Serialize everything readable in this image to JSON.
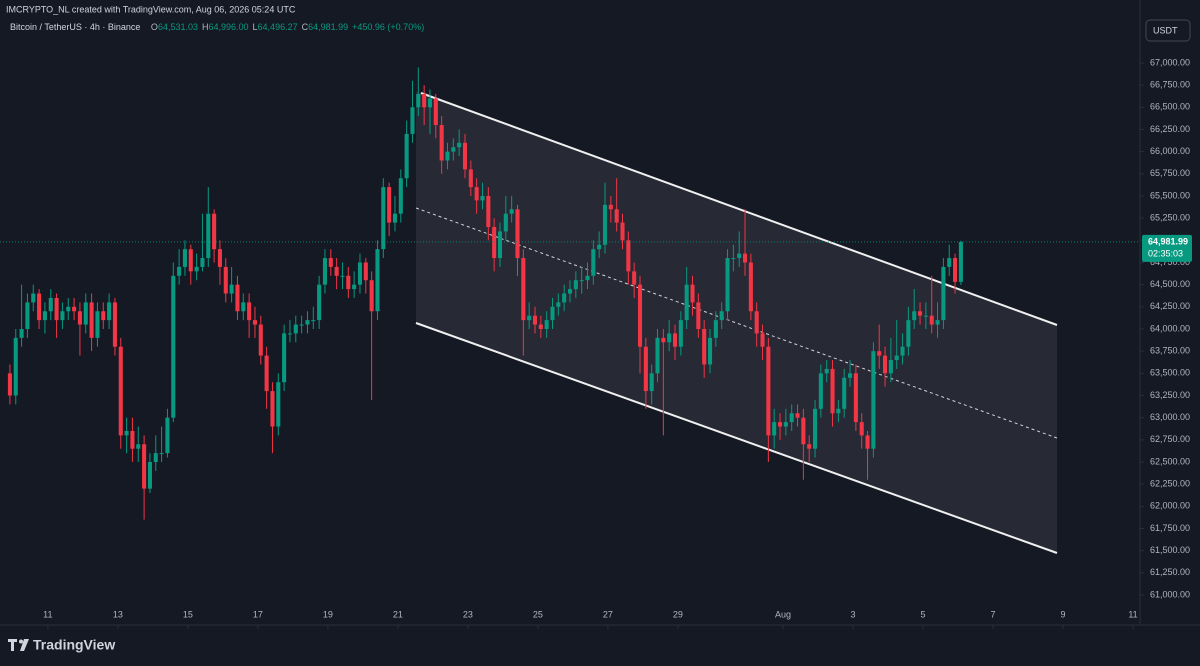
{
  "header": {
    "credit": "IMCRYPTO_NL created with TradingView.com, Aug 06, 2026 05:24 UTC",
    "symbol": "Bitcoin / TetherUS · 4h · Binance",
    "ohlc": [
      {
        "label": "O",
        "value": "64,531.03"
      },
      {
        "label": "H",
        "value": "64,996.00"
      },
      {
        "label": "L",
        "value": "64,496.27"
      },
      {
        "label": "C",
        "value": "64,981.99"
      }
    ],
    "change": "+450.96 (+0.70%)"
  },
  "currency": "USDT",
  "brand": "TradingView",
  "chart_data": {
    "type": "candlestick",
    "up_color": "#089981",
    "down_color": "#f23645",
    "last_price_label": "64,981.99",
    "countdown": "02:35:03",
    "open": [
      63500,
      63250,
      63900,
      64000,
      64300,
      64400,
      64100,
      64200,
      64350,
      64100,
      64200,
      64250,
      64200,
      64050,
      64300,
      63900,
      64200,
      64100,
      64300,
      63800,
      62800,
      62850,
      62650,
      62700,
      62200,
      62500,
      62600,
      62600,
      63000,
      64600,
      64700,
      64900,
      64650,
      64700,
      64800,
      65300,
      64900,
      64700,
      64400,
      64500,
      64200,
      64300,
      64100,
      64050,
      63700,
      63300,
      62900,
      63400,
      63950,
      63950,
      64050,
      64050,
      64100,
      64100,
      64500,
      64800,
      64700,
      64600,
      64600,
      64450,
      64500,
      64750,
      64550,
      64200,
      64900,
      65600,
      65200,
      65300,
      65700,
      66200,
      66500,
      66650,
      66500,
      66600,
      66300,
      65900,
      66000,
      66050,
      66100,
      65800,
      65600,
      65450,
      65500,
      65150,
      64800,
      65100,
      65300,
      65350,
      64800,
      64100,
      64150,
      64050,
      64000,
      64100,
      64250,
      64300,
      64400,
      64450,
      64550,
      64550,
      64600,
      64900,
      64950,
      65400,
      65350,
      65200,
      65000,
      64650,
      64500,
      63800,
      63300,
      63500,
      63900,
      63850,
      63950,
      63800,
      64100,
      64500,
      64300,
      64000,
      63600,
      63900,
      64100,
      64200,
      64800,
      64800,
      64850,
      64750,
      64200,
      63950,
      63800,
      62800,
      62950,
      62900,
      62950,
      63050,
      63000,
      62700,
      62650,
      63100,
      63500,
      63550,
      63050,
      63100,
      63450,
      63500,
      62950,
      62800,
      62650,
      63750,
      63700,
      63500,
      63650,
      63700,
      63800,
      64100,
      64200,
      64150,
      64150,
      64050,
      64100,
      64700,
      64800,
      64531.03
    ],
    "high": [
      63600,
      64000,
      64500,
      64400,
      64500,
      64450,
      64300,
      64450,
      64400,
      64300,
      64350,
      64350,
      64300,
      64400,
      64400,
      64300,
      64300,
      64400,
      64350,
      63900,
      63000,
      63000,
      62900,
      62800,
      62600,
      62800,
      62900,
      63100,
      64750,
      64900,
      65000,
      64950,
      64850,
      65300,
      65600,
      65350,
      65000,
      64800,
      64700,
      64600,
      64400,
      64400,
      64250,
      64150,
      63800,
      63400,
      63500,
      64050,
      64100,
      64150,
      64150,
      64200,
      64250,
      64600,
      64900,
      64900,
      64800,
      64750,
      64700,
      64650,
      64850,
      64800,
      64650,
      65000,
      65700,
      65650,
      65500,
      65800,
      66350,
      66800,
      66950,
      66750,
      66700,
      66650,
      66400,
      66100,
      66150,
      66250,
      66200,
      65900,
      65700,
      65650,
      65600,
      65250,
      65200,
      65500,
      65500,
      65400,
      64900,
      64300,
      64250,
      64150,
      64200,
      64350,
      64400,
      64500,
      64550,
      64650,
      64700,
      64750,
      65000,
      65100,
      65650,
      65500,
      65700,
      65300,
      65100,
      64750,
      64600,
      63900,
      63600,
      64000,
      64000,
      64100,
      64050,
      64200,
      64700,
      64600,
      64400,
      64100,
      64000,
      64200,
      64300,
      64900,
      64950,
      65100,
      65350,
      64850,
      64300,
      64050,
      63900,
      63100,
      63050,
      63100,
      63150,
      63150,
      63100,
      62800,
      63200,
      63600,
      63650,
      63650,
      63200,
      63550,
      63650,
      63600,
      63050,
      62850,
      63850,
      64050,
      63800,
      63900,
      64100,
      63950,
      64250,
      64450,
      64300,
      64300,
      64600,
      64300,
      64800,
      64950,
      64850,
      64996
    ],
    "low": [
      63150,
      63150,
      63800,
      63900,
      64200,
      64000,
      63950,
      64100,
      63900,
      64000,
      64100,
      64100,
      63700,
      63950,
      63750,
      63800,
      64000,
      64000,
      63700,
      62650,
      62600,
      62500,
      62500,
      61850,
      62150,
      62400,
      62500,
      62550,
      62950,
      64500,
      64600,
      64500,
      64550,
      64650,
      64700,
      64750,
      64500,
      64300,
      64300,
      64100,
      64100,
      63900,
      63900,
      63600,
      63100,
      62600,
      62800,
      63300,
      63850,
      63850,
      63950,
      63950,
      64000,
      64000,
      64400,
      64600,
      64450,
      64450,
      64350,
      64350,
      64400,
      64400,
      63200,
      64100,
      64800,
      65050,
      65100,
      65200,
      65600,
      66100,
      66400,
      66300,
      66200,
      66150,
      65750,
      65800,
      65900,
      65950,
      65700,
      65500,
      65300,
      65350,
      65000,
      64650,
      64700,
      65000,
      65200,
      64600,
      63700,
      64000,
      63950,
      63900,
      63900,
      64000,
      64150,
      64200,
      64300,
      64350,
      64400,
      64450,
      64500,
      64800,
      64850,
      65200,
      65100,
      64900,
      64500,
      64350,
      63500,
      63100,
      63150,
      63400,
      62800,
      63750,
      63650,
      63700,
      64000,
      64150,
      63900,
      63450,
      63500,
      63800,
      64000,
      64100,
      64650,
      64700,
      64600,
      64100,
      63800,
      63650,
      62500,
      62650,
      62750,
      62800,
      62850,
      62900,
      62300,
      62500,
      62550,
      63000,
      63400,
      62900,
      62950,
      63000,
      63350,
      62850,
      62650,
      62300,
      62550,
      63550,
      63350,
      63400,
      63550,
      63600,
      63700,
      64000,
      64050,
      64000,
      63950,
      63900,
      64000,
      64600,
      64400,
      64496.27
    ],
    "close": [
      63250,
      63900,
      64000,
      64300,
      64400,
      64100,
      64200,
      64350,
      64100,
      64200,
      64250,
      64200,
      64050,
      64300,
      63900,
      64200,
      64100,
      64300,
      63800,
      62800,
      62850,
      62650,
      62700,
      62200,
      62500,
      62600,
      62600,
      63000,
      64600,
      64700,
      64900,
      64650,
      64700,
      64800,
      65300,
      64900,
      64700,
      64400,
      64500,
      64200,
      64300,
      64100,
      64050,
      63700,
      63300,
      62900,
      63400,
      63950,
      63950,
      64050,
      64050,
      64100,
      64100,
      64500,
      64800,
      64700,
      64600,
      64600,
      64450,
      64500,
      64750,
      64550,
      64200,
      64900,
      65600,
      65200,
      65300,
      65700,
      66200,
      66500,
      66650,
      66500,
      66600,
      66300,
      65900,
      66000,
      66050,
      66100,
      65800,
      65600,
      65450,
      65500,
      65150,
      64800,
      65100,
      65300,
      65350,
      64800,
      64100,
      64150,
      64050,
      64000,
      64100,
      64250,
      64300,
      64400,
      64450,
      64550,
      64550,
      64600,
      64900,
      64950,
      65400,
      65350,
      65200,
      65000,
      64650,
      64500,
      63800,
      63300,
      63500,
      63900,
      63850,
      63950,
      63800,
      64100,
      64500,
      64300,
      64000,
      63600,
      63900,
      64100,
      64200,
      64800,
      64800,
      64850,
      64750,
      64200,
      63950,
      63800,
      62800,
      62950,
      62900,
      62950,
      63050,
      63000,
      62700,
      62650,
      63100,
      63500,
      63550,
      63050,
      63100,
      63450,
      63500,
      62950,
      62800,
      62650,
      63750,
      63700,
      63500,
      63650,
      63700,
      63800,
      64100,
      64200,
      64150,
      64150,
      64050,
      64100,
      64700,
      64800,
      64531.03,
      64981.99
    ],
    "ylim": [
      60662,
      67710
    ],
    "yticks": [
      {
        "value": 61000,
        "label": "61,000.00"
      },
      {
        "value": 61250,
        "label": "61,250.00"
      },
      {
        "value": 61500,
        "label": "61,500.00"
      },
      {
        "value": 61750,
        "label": "61,750.00"
      },
      {
        "value": 62000,
        "label": "62,000.00"
      },
      {
        "value": 62250,
        "label": "62,250.00"
      },
      {
        "value": 62500,
        "label": "62,500.00"
      },
      {
        "value": 62750,
        "label": "62,750.00"
      },
      {
        "value": 63000,
        "label": "63,000.00"
      },
      {
        "value": 63250,
        "label": "63,250.00"
      },
      {
        "value": 63500,
        "label": "63,500.00"
      },
      {
        "value": 63750,
        "label": "63,750.00"
      },
      {
        "value": 64000,
        "label": "64,000.00"
      },
      {
        "value": 64250,
        "label": "64,250.00"
      },
      {
        "value": 64500,
        "label": "64,500.00"
      },
      {
        "value": 64750,
        "label": "64,750.00"
      },
      {
        "value": 65000,
        "label": "65,000.00"
      },
      {
        "value": 65250,
        "label": "65,250.00"
      },
      {
        "value": 65500,
        "label": "65,500.00"
      },
      {
        "value": 65750,
        "label": "65,750.00"
      },
      {
        "value": 66000,
        "label": "66,000.00"
      },
      {
        "value": 66250,
        "label": "66,250.00"
      },
      {
        "value": 66500,
        "label": "66,500.00"
      },
      {
        "value": 66750,
        "label": "66,750.00"
      },
      {
        "value": 67000,
        "label": "67,000.00"
      }
    ],
    "xlim": [
      -1.7,
      193.7
    ],
    "xticks": [
      {
        "value": 6.5,
        "label": "11"
      },
      {
        "value": 18.5,
        "label": "13"
      },
      {
        "value": 30.5,
        "label": "15"
      },
      {
        "value": 42.5,
        "label": "17"
      },
      {
        "value": 54.5,
        "label": "19"
      },
      {
        "value": 66.5,
        "label": "21"
      },
      {
        "value": 78.5,
        "label": "23"
      },
      {
        "value": 90.5,
        "label": "25"
      },
      {
        "value": 102.5,
        "label": "27"
      },
      {
        "value": 114.5,
        "label": "29"
      },
      {
        "value": 132.5,
        "label": "Aug"
      },
      {
        "value": 144.5,
        "label": "3"
      },
      {
        "value": 156.5,
        "label": "5"
      },
      {
        "value": 168.5,
        "label": "7"
      },
      {
        "value": 180.5,
        "label": "9"
      },
      {
        "value": 192.5,
        "label": "11"
      }
    ],
    "grid": false
  }
}
